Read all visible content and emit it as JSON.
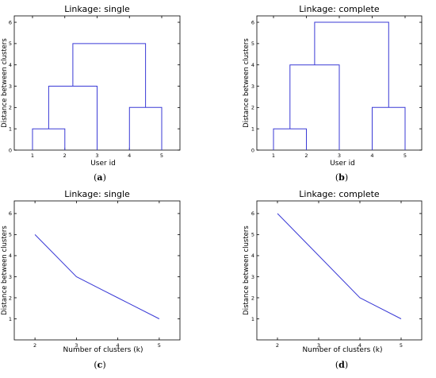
{
  "chart_data": [
    {
      "type": "dendrogram",
      "panel": "(a)",
      "title": "Linkage: single",
      "xlabel": "User id",
      "ylabel": "Distance between clusters",
      "leaves": [
        "1",
        "2",
        "3",
        "4",
        "5"
      ],
      "ylim": [
        0,
        6.3
      ],
      "yticks": [
        0,
        1,
        2,
        3,
        4,
        5,
        6
      ],
      "merges": [
        {
          "left": "1",
          "right": "2",
          "height": 1
        },
        {
          "left": "4",
          "right": "5",
          "height": 2
        },
        {
          "left": "(1,2)",
          "right": "3",
          "height": 3
        },
        {
          "left": "(1,2,3)",
          "right": "(4,5)",
          "height": 5
        }
      ],
      "links": [
        {
          "x": [
            1,
            1,
            2,
            2
          ],
          "y": [
            0,
            1,
            1,
            0
          ]
        },
        {
          "x": [
            4,
            4,
            5,
            5
          ],
          "y": [
            0,
            2,
            2,
            0
          ]
        },
        {
          "x": [
            1.5,
            1.5,
            3,
            3
          ],
          "y": [
            1,
            3,
            3,
            0
          ]
        },
        {
          "x": [
            2.25,
            2.25,
            4.5,
            4.5
          ],
          "y": [
            3,
            5,
            5,
            2
          ]
        }
      ]
    },
    {
      "type": "dendrogram",
      "panel": "(b)",
      "title": "Linkage: complete",
      "xlabel": "User id",
      "ylabel": "Distance between clusters",
      "leaves": [
        "1",
        "2",
        "3",
        "4",
        "5"
      ],
      "ylim": [
        0,
        6.3
      ],
      "yticks": [
        0,
        1,
        2,
        3,
        4,
        5,
        6
      ],
      "merges": [
        {
          "left": "1",
          "right": "2",
          "height": 1
        },
        {
          "left": "4",
          "right": "5",
          "height": 2
        },
        {
          "left": "(1,2)",
          "right": "3",
          "height": 4
        },
        {
          "left": "(1,2,3)",
          "right": "(4,5)",
          "height": 6
        }
      ],
      "links": [
        {
          "x": [
            1,
            1,
            2,
            2
          ],
          "y": [
            0,
            1,
            1,
            0
          ]
        },
        {
          "x": [
            4,
            4,
            5,
            5
          ],
          "y": [
            0,
            2,
            2,
            0
          ]
        },
        {
          "x": [
            1.5,
            1.5,
            3,
            3
          ],
          "y": [
            1,
            4,
            4,
            0
          ]
        },
        {
          "x": [
            2.25,
            2.25,
            4.5,
            4.5
          ],
          "y": [
            4,
            6,
            6,
            2
          ]
        }
      ]
    },
    {
      "type": "line",
      "panel": "(c)",
      "title": "Linkage: single",
      "xlabel": "Number of clusters (k)",
      "ylabel": "Distance between clusters",
      "xlim": [
        1.5,
        5.5
      ],
      "ylim": [
        0,
        6.6
      ],
      "xticks": [
        2,
        3,
        4,
        5
      ],
      "yticks": [
        1,
        2,
        3,
        4,
        5,
        6
      ],
      "x": [
        2,
        3,
        4,
        5
      ],
      "y": [
        5,
        3,
        2,
        1
      ]
    },
    {
      "type": "line",
      "panel": "(d)",
      "title": "Linkage: complete",
      "xlabel": "Number of clusters (k)",
      "ylabel": "Distance between clusters",
      "xlim": [
        1.5,
        5.5
      ],
      "ylim": [
        0,
        6.6
      ],
      "xticks": [
        2,
        3,
        4,
        5
      ],
      "yticks": [
        1,
        2,
        3,
        4,
        5,
        6
      ],
      "x": [
        2,
        3,
        4,
        5
      ],
      "y": [
        6,
        4,
        2,
        1
      ]
    }
  ],
  "colors": {
    "series": "#3a3ad6",
    "frame": "#000000"
  }
}
